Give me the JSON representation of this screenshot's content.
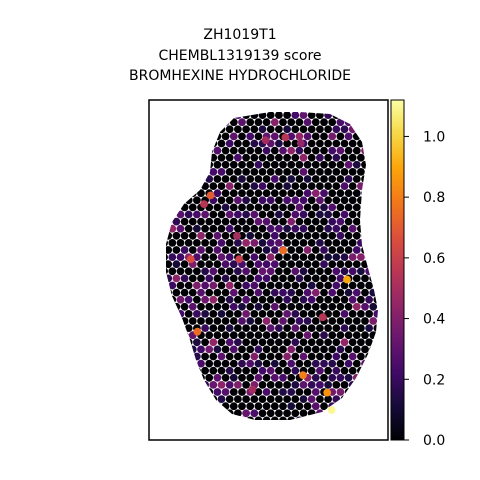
{
  "title": {
    "line1": "ZH1019T1",
    "line2": "CHEMBL1319139 score",
    "line3": "BROMHEXINE HYDROCHLORIDE"
  },
  "colorbar": {
    "colormap": "inferno",
    "range": [
      0.0,
      1.12
    ],
    "ticks": [
      "0.0",
      "0.2",
      "0.4",
      "0.6",
      "0.8",
      "1.0"
    ]
  },
  "chart_data": {
    "type": "scatter",
    "subtype": "spatial spot map (hexagonal grid)",
    "title": "ZH1019T1 CHEMBL1319139 score BROMHEXINE HYDROCHLORIDE",
    "color_scale": {
      "min": 0.0,
      "max": 1.12,
      "colormap": "inferno"
    },
    "axes_visible": false,
    "background_value": 0.0,
    "highlighted_spots": [
      {
        "x": 0.57,
        "y": 0.06,
        "score": 0.55
      },
      {
        "x": 0.48,
        "y": 0.07,
        "score": 0.5
      },
      {
        "x": 0.64,
        "y": 0.08,
        "score": 0.45
      },
      {
        "x": 0.23,
        "y": 0.26,
        "score": 0.7
      },
      {
        "x": 0.2,
        "y": 0.29,
        "score": 0.55
      },
      {
        "x": 0.35,
        "y": 0.4,
        "score": 0.5
      },
      {
        "x": 0.14,
        "y": 0.48,
        "score": 0.65
      },
      {
        "x": 0.56,
        "y": 0.45,
        "score": 0.75
      },
      {
        "x": 0.36,
        "y": 0.48,
        "score": 0.6
      },
      {
        "x": 0.85,
        "y": 0.55,
        "score": 0.9
      },
      {
        "x": 0.74,
        "y": 0.68,
        "score": 0.55
      },
      {
        "x": 0.17,
        "y": 0.73,
        "score": 0.75
      },
      {
        "x": 0.65,
        "y": 0.88,
        "score": 0.8
      },
      {
        "x": 0.76,
        "y": 0.94,
        "score": 0.85
      },
      {
        "x": 0.42,
        "y": 0.93,
        "score": 0.5
      },
      {
        "x": 0.78,
        "y": 1.0,
        "score": 1.1
      }
    ],
    "spot_count_visual": "approx. 900 spots, mostly near 0 with scattered values 0.1–0.4"
  }
}
